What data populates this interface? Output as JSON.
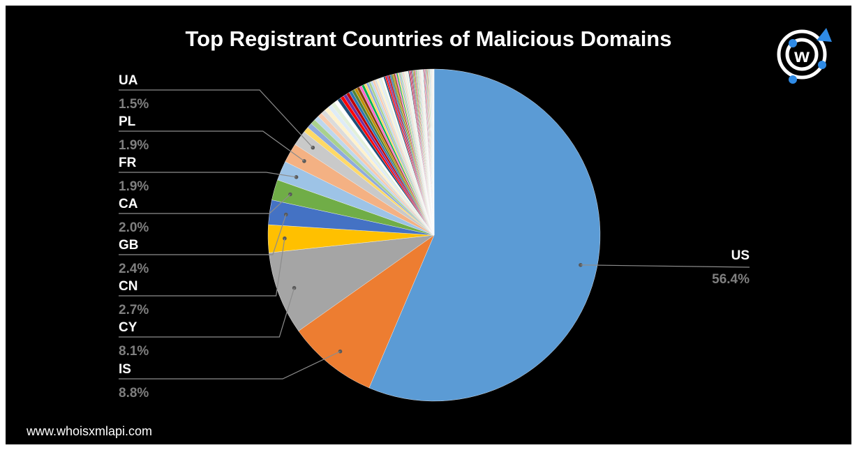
{
  "chart_data": {
    "type": "pie",
    "title": "Top Registrant Countries of Malicious Domains",
    "slices": [
      {
        "label": "US",
        "value": 56.4,
        "display": "56.4%",
        "color": "#5b9bd5"
      },
      {
        "label": "IS",
        "value": 8.8,
        "display": "8.8%",
        "color": "#ed7d31"
      },
      {
        "label": "CY",
        "value": 8.1,
        "display": "8.1%",
        "color": "#a5a5a5"
      },
      {
        "label": "CN",
        "value": 2.7,
        "display": "2.7%",
        "color": "#ffc000"
      },
      {
        "label": "GB",
        "value": 2.4,
        "display": "2.4%",
        "color": "#4472c4"
      },
      {
        "label": "CA",
        "value": 2.0,
        "display": "2.0%",
        "color": "#70ad47"
      },
      {
        "label": "FR",
        "value": 1.9,
        "display": "1.9%",
        "color": "#9dc3e6"
      },
      {
        "label": "PL",
        "value": 1.9,
        "display": "1.9%",
        "color": "#f4b183"
      },
      {
        "label": "UA",
        "value": 1.5,
        "display": "1.5%",
        "color": "#c9c9c9"
      }
    ],
    "other_total": 14.3,
    "other_colors": [
      "#ffd966",
      "#8faadc",
      "#a9d18e",
      "#bdd7ee",
      "#f8cbad",
      "#dbdbdb",
      "#fff2cc",
      "#deebf7",
      "#e2f0d9",
      "#ffffff",
      "#1f4e79",
      "#ff0000",
      "#7030a0",
      "#c00000",
      "#2e75b6",
      "#548235",
      "#bf9000",
      "#843c0c",
      "#ff66cc",
      "#00b050"
    ],
    "legend": "none"
  },
  "footer": {
    "website": "www.whoisxmlapi.com"
  },
  "colors": {
    "background": "#000000",
    "label_text": "#ffffff",
    "value_text": "#7f7f7f",
    "leader_line": "#8c8c8c"
  },
  "logo": {
    "icon": "whoisxmlapi-logo-icon",
    "letter": "w"
  }
}
